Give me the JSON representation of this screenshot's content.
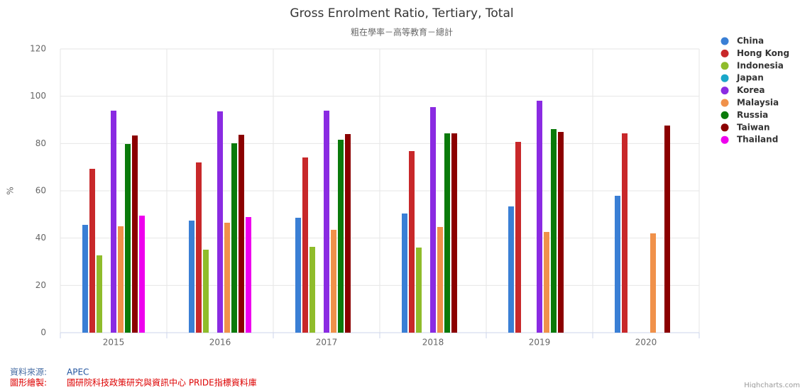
{
  "chart_data": {
    "type": "bar",
    "title": "Gross Enrolment Ratio, Tertiary, Total",
    "subtitle": "粗在學率－高等教育－總計",
    "y_label": "%",
    "categories": [
      "2015",
      "2016",
      "2017",
      "2018",
      "2019",
      "2020"
    ],
    "series": [
      {
        "name": "China",
        "color": "#3a7fd5",
        "values": [
          45.6,
          47.4,
          48.6,
          50.4,
          53.4,
          57.9
        ]
      },
      {
        "name": "Hong Kong",
        "color": "#c8282a",
        "values": [
          69.3,
          72,
          74.1,
          76.8,
          80.7,
          84.3
        ]
      },
      {
        "name": "Indonesia",
        "color": "#8fbc2b",
        "values": [
          32.7,
          35.1,
          36.3,
          36,
          null,
          null
        ]
      },
      {
        "name": "Japan",
        "color": "#1aa7c9",
        "values": [
          null,
          null,
          null,
          null,
          null,
          null
        ]
      },
      {
        "name": "Korea",
        "color": "#8a2be2",
        "values": [
          93.9,
          93.6,
          93.9,
          95.4,
          98.1,
          null
        ]
      },
      {
        "name": "Malaysia",
        "color": "#f0914a",
        "values": [
          45,
          46.5,
          43.5,
          44.7,
          42.6,
          42
        ]
      },
      {
        "name": "Russia",
        "color": "#0a7a0a",
        "values": [
          79.8,
          80.1,
          81.6,
          84.3,
          86.1,
          null
        ]
      },
      {
        "name": "Taiwan",
        "color": "#8b0000",
        "values": [
          83.4,
          83.7,
          84,
          84.3,
          84.9,
          87.6
        ]
      },
      {
        "name": "Thailand",
        "color": "#ee00ee",
        "values": [
          49.5,
          48.9,
          null,
          null,
          null,
          null
        ]
      }
    ],
    "ylim": [
      0,
      120
    ],
    "yticks": [
      0,
      20,
      40,
      60,
      80,
      100,
      120
    ],
    "grid": true,
    "legend": "right",
    "footer": {
      "source_label": "資料來源:",
      "source": "APEC",
      "credit_label": "圖形繪製:",
      "credit": "國研院科技政策研究與資訊中心 PRIDE指標資料庫"
    },
    "credits": "Highcharts.com"
  }
}
